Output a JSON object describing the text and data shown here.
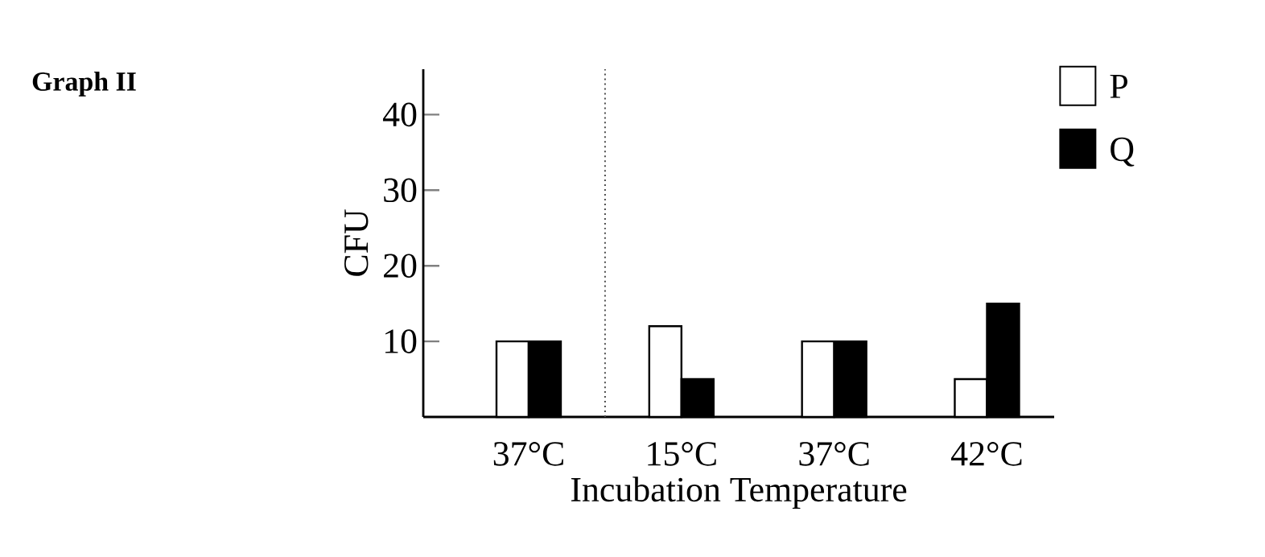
{
  "chart_data": {
    "type": "bar",
    "title": "Graph II",
    "xlabel": "Incubation Temperature",
    "ylabel": "CFU",
    "categories": [
      "37°C",
      "15°C",
      "37°C",
      "42°C"
    ],
    "series": [
      {
        "name": "P",
        "color": "#ffffff",
        "values": [
          10,
          12,
          10,
          5
        ]
      },
      {
        "name": "Q",
        "color": "#000000",
        "values": [
          10,
          5,
          10,
          15
        ]
      }
    ],
    "ylim": [
      0,
      46
    ],
    "yticks": [
      10,
      20,
      30,
      40
    ],
    "legend": "top right"
  }
}
